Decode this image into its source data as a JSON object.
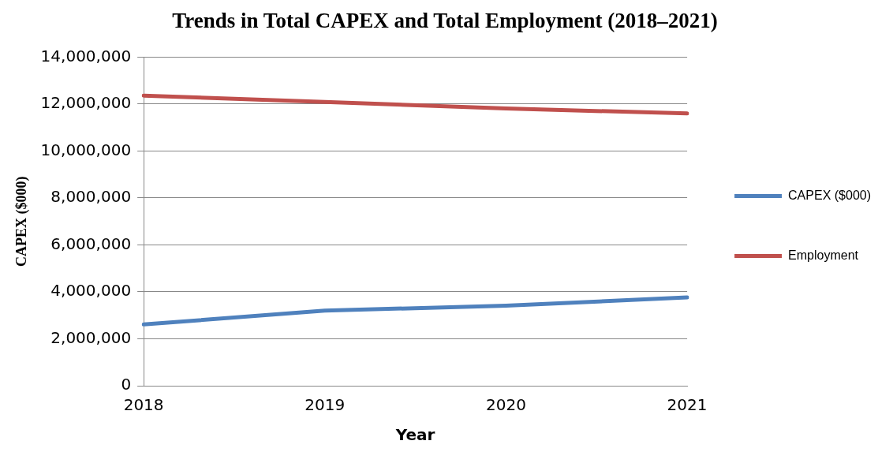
{
  "chart_data": {
    "type": "line",
    "title": "Trends in Total CAPEX and Total Employment (2018–2021)",
    "xlabel": "Year",
    "ylabel": "CAPEX ($000)",
    "categories": [
      "2018",
      "2019",
      "2020",
      "2021"
    ],
    "series": [
      {
        "name": "CAPEX ($000)",
        "color": "#4f81bd",
        "values": [
          2610000,
          3200000,
          3410000,
          3760000
        ]
      },
      {
        "name": "Employment",
        "color": "#c0504d",
        "values": [
          12360000,
          12090000,
          11810000,
          11600000
        ]
      }
    ],
    "ylim": [
      0,
      14000000
    ],
    "yticks": [
      {
        "value": 0,
        "label": "0"
      },
      {
        "value": 2000000,
        "label": "2,000,000"
      },
      {
        "value": 4000000,
        "label": "4,000,000"
      },
      {
        "value": 6000000,
        "label": "6,000,000"
      },
      {
        "value": 8000000,
        "label": "8,000,000"
      },
      {
        "value": 10000000,
        "label": "10,000,000"
      },
      {
        "value": 12000000,
        "label": "12,000,000"
      },
      {
        "value": 14000000,
        "label": "14,000,000"
      }
    ],
    "grid": "y",
    "legend": "right",
    "marker": "none",
    "line_style": "solid"
  }
}
